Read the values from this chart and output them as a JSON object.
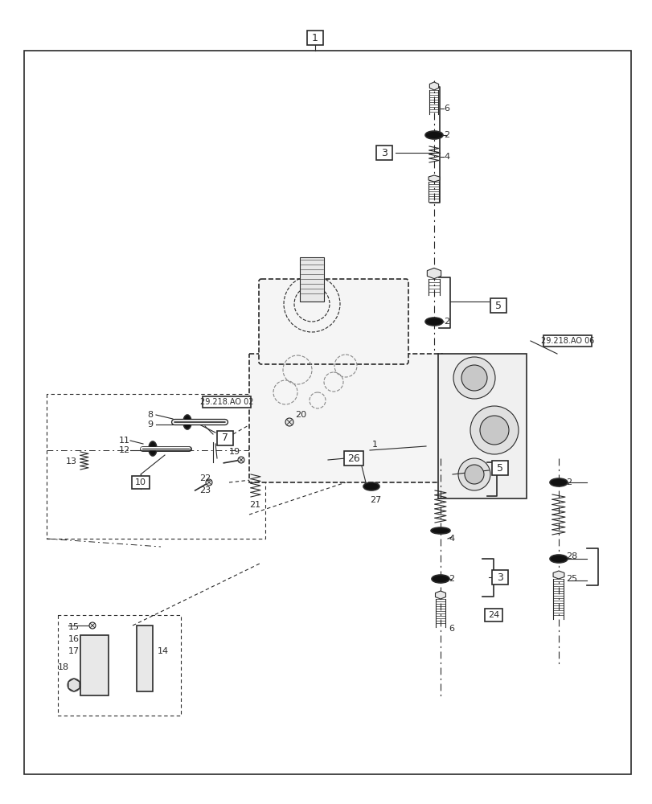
{
  "bg_color": "#ffffff",
  "line_color": "#2a2a2a",
  "fig_width": 8.12,
  "fig_height": 10.0,
  "dpi": 100
}
